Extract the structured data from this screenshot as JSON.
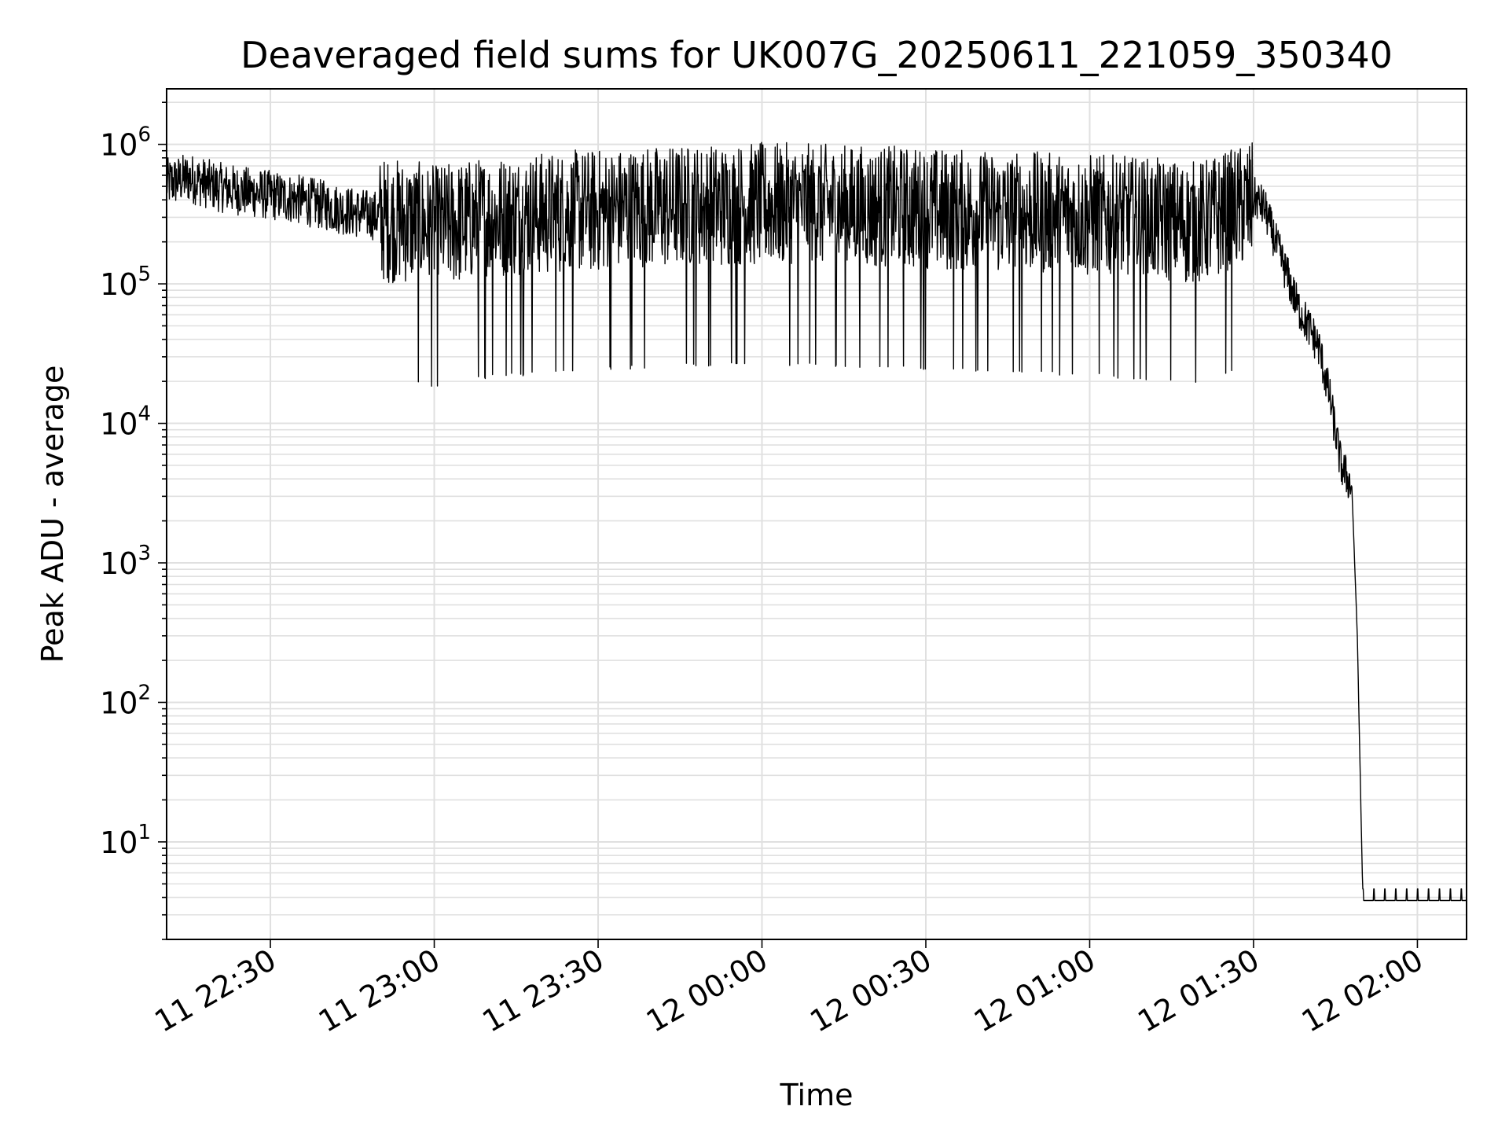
{
  "chart_data": {
    "type": "line",
    "title": "Deaveraged field sums for UK007G_20250611_221059_350340",
    "xlabel": "Time",
    "ylabel": "Peak ADU - average",
    "yscale": "log",
    "xlim": [
      "2025-06-11 22:11:00",
      "2025-06-12 02:09:00"
    ],
    "ylim": [
      2,
      2500000
    ],
    "grid": true,
    "legend": "none",
    "line_color": "#000000",
    "grid_color": "#e0e0e0",
    "x_ticks": [
      {
        "value": "2025-06-11 22:30:00",
        "label": "11 22:30"
      },
      {
        "value": "2025-06-11 23:00:00",
        "label": "11 23:00"
      },
      {
        "value": "2025-06-11 23:30:00",
        "label": "11 23:30"
      },
      {
        "value": "2025-06-12 00:00:00",
        "label": "12 00:00"
      },
      {
        "value": "2025-06-12 00:30:00",
        "label": "12 00:30"
      },
      {
        "value": "2025-06-12 01:00:00",
        "label": "12 01:00"
      },
      {
        "value": "2025-06-12 01:30:00",
        "label": "12 01:30"
      },
      {
        "value": "2025-06-12 02:00:00",
        "label": "12 02:00"
      }
    ],
    "y_ticks": [
      {
        "value": 10,
        "base": "10",
        "exp": "1"
      },
      {
        "value": 100,
        "base": "10",
        "exp": "2"
      },
      {
        "value": 1000,
        "base": "10",
        "exp": "3"
      },
      {
        "value": 10000,
        "base": "10",
        "exp": "4"
      },
      {
        "value": 100000,
        "base": "10",
        "exp": "5"
      },
      {
        "value": 1000000,
        "base": "10",
        "exp": "6"
      }
    ],
    "series": [
      {
        "x": [
          "2025-06-11 22:11:00",
          "2025-06-11 22:15:00",
          "2025-06-11 22:20:00",
          "2025-06-11 22:25:00",
          "2025-06-11 22:30:00",
          "2025-06-11 22:35:00",
          "2025-06-11 22:40:00",
          "2025-06-11 22:45:00",
          "2025-06-11 22:50:00",
          "2025-06-11 22:55:00",
          "2025-06-11 23:00:00",
          "2025-06-11 23:10:00",
          "2025-06-11 23:20:00",
          "2025-06-11 23:30:00",
          "2025-06-11 23:40:00",
          "2025-06-11 23:50:00",
          "2025-06-12 00:00:00",
          "2025-06-12 00:10:00",
          "2025-06-12 00:20:00",
          "2025-06-12 00:30:00",
          "2025-06-12 00:40:00",
          "2025-06-12 00:50:00",
          "2025-06-12 01:00:00",
          "2025-06-12 01:10:00",
          "2025-06-12 01:20:00",
          "2025-06-12 01:30:00",
          "2025-06-12 01:32:00",
          "2025-06-12 01:34:00",
          "2025-06-12 01:36:00",
          "2025-06-12 01:38:00",
          "2025-06-12 01:40:00",
          "2025-06-12 01:42:00",
          "2025-06-12 01:44:00",
          "2025-06-12 01:46:00",
          "2025-06-12 01:48:00",
          "2025-06-12 01:49:00",
          "2025-06-12 01:50:00",
          "2025-06-12 01:52:00",
          "2025-06-12 02:09:00"
        ],
        "y": [
          550000,
          600000,
          520000,
          480000,
          450000,
          420000,
          380000,
          340000,
          320000,
          310000,
          280000,
          330000,
          350000,
          370000,
          390000,
          400000,
          410000,
          400000,
          390000,
          380000,
          360000,
          350000,
          340000,
          320000,
          300000,
          420000,
          350000,
          200000,
          120000,
          70000,
          50000,
          35000,
          15000,
          5000,
          3500,
          300,
          4,
          4,
          4
        ]
      }
    ]
  }
}
